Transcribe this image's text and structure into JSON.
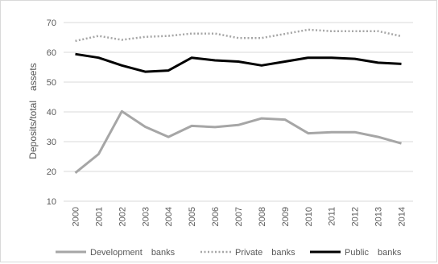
{
  "chart_data": {
    "type": "line",
    "title": "",
    "xlabel": "",
    "ylabel": "Deposits/total assets",
    "x": [
      "2000",
      "2001",
      "2002",
      "2003",
      "2004",
      "2005",
      "2006",
      "2007",
      "2008",
      "2009",
      "2010",
      "2011",
      "2012",
      "2013",
      "2014"
    ],
    "ylim": [
      10,
      70
    ],
    "yticks": [
      10,
      20,
      30,
      40,
      50,
      60,
      70
    ],
    "grid": "horizontal",
    "legend_position": "bottom",
    "series": [
      {
        "name": "Development banks",
        "color": "#a6a6a6",
        "style": "solid",
        "values": [
          19.5,
          25.8,
          40.2,
          35.0,
          31.6,
          35.3,
          34.9,
          35.6,
          37.8,
          37.4,
          32.8,
          33.2,
          33.2,
          31.6,
          29.4
        ]
      },
      {
        "name": "Private banks",
        "color": "#a6a6a6",
        "style": "dotted",
        "values": [
          63.8,
          65.5,
          64.2,
          65.2,
          65.5,
          66.3,
          66.3,
          64.8,
          64.8,
          66.2,
          67.6,
          67.1,
          67.1,
          67.1,
          65.4
        ]
      },
      {
        "name": "Public banks",
        "color": "#000000",
        "style": "solid",
        "values": [
          59.4,
          58.2,
          55.6,
          53.5,
          53.9,
          58.2,
          57.3,
          56.9,
          55.6,
          56.9,
          58.2,
          58.2,
          57.8,
          56.5,
          56.1
        ]
      }
    ]
  }
}
